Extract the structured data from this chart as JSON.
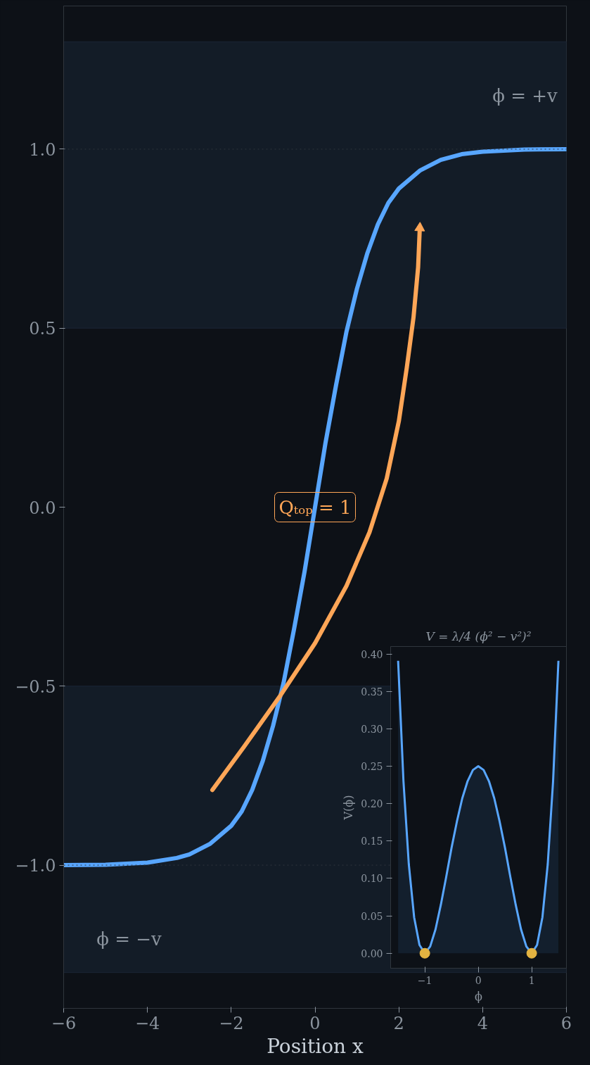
{
  "chart_data": [
    {
      "type": "line",
      "xlabel": "Position x",
      "series": [
        {
          "color": "#58a6ff",
          "x": [
            -6,
            -5,
            -4,
            -3.3,
            -3,
            -2.5,
            -2,
            -1.75,
            -1.5,
            -1.25,
            -1,
            -0.75,
            -0.5,
            -0.25,
            0,
            0.25,
            0.5,
            0.75,
            1,
            1.25,
            1.5,
            1.75,
            2,
            2.5,
            3,
            3.5,
            4,
            5,
            6
          ],
          "values": [
            -1.0,
            -0.999,
            -0.993,
            -0.98,
            -0.97,
            -0.94,
            -0.89,
            -0.85,
            -0.79,
            -0.71,
            -0.61,
            -0.49,
            -0.34,
            -0.18,
            0.0,
            0.18,
            0.34,
            0.49,
            0.61,
            0.71,
            0.79,
            0.85,
            0.89,
            0.94,
            0.97,
            0.986,
            0.993,
            0.999,
            1.0
          ]
        },
        {
          "color": "#ffa657",
          "x": [
            -2.45,
            -1.7,
            -0.85,
            0.0,
            0.75,
            1.3,
            1.71,
            2.0,
            2.19,
            2.35,
            2.46,
            2.5
          ],
          "values": [
            -0.79,
            -0.67,
            -0.53,
            -0.38,
            -0.22,
            -0.07,
            0.08,
            0.24,
            0.39,
            0.53,
            0.67,
            0.78
          ]
        }
      ],
      "xlim": [
        -6,
        6
      ],
      "ylim": [
        -1.4,
        1.4
      ],
      "xticks": [
        {
          "value": -6,
          "label": "−6"
        },
        {
          "value": -4,
          "label": "−4"
        },
        {
          "value": -2,
          "label": "−2"
        },
        0,
        2,
        4,
        6
      ],
      "yticks": [
        {
          "value": -1,
          "label": "−1.0"
        },
        {
          "value": -0.5,
          "label": "−0.5"
        },
        {
          "value": 0,
          "label": "0.0"
        },
        {
          "value": 0.5,
          "label": "0.5"
        },
        {
          "value": 1,
          "label": "1.0"
        }
      ],
      "grid": false,
      "ref_lines": [
        {
          "axis": "y",
          "value": 1,
          "color": "#30363d",
          "line_style": "dotted"
        },
        {
          "axis": "y",
          "value": -1,
          "color": "#30363d",
          "line_style": "dotted"
        }
      ],
      "bands": [
        {
          "axis": "y",
          "from": 0.5,
          "to": 1.3,
          "color": "#131c27"
        },
        {
          "axis": "y",
          "from": -1.3,
          "to": -0.5,
          "color": "#131c27"
        }
      ],
      "annotations": [
        "ϕ = +v",
        "ϕ = −v",
        {
          "text": "Qₜₒₚ = 1",
          "x": 0,
          "y": 0
        }
      ]
    },
    {
      "type": "area",
      "title": "V = λ/4 (ϕ² − v²)²",
      "xlabel": "ϕ",
      "ylabel": "V(ϕ)",
      "series": [
        {
          "color": "#58a6ff",
          "x": [
            -1.5,
            -1.4,
            -1.3,
            -1.2,
            -1.1,
            -1.0,
            -0.9,
            -0.8,
            -0.7,
            -0.6,
            -0.5,
            -0.4,
            -0.3,
            -0.2,
            -0.1,
            0,
            0.1,
            0.2,
            0.3,
            0.4,
            0.5,
            0.6,
            0.7,
            0.8,
            0.9,
            1.0,
            1.1,
            1.2,
            1.3,
            1.4,
            1.5
          ],
          "values": [
            0.391,
            0.23,
            0.119,
            0.048,
            0.011,
            0.0,
            0.009,
            0.032,
            0.065,
            0.102,
            0.141,
            0.176,
            0.207,
            0.23,
            0.245,
            0.25,
            0.245,
            0.23,
            0.207,
            0.176,
            0.141,
            0.102,
            0.065,
            0.032,
            0.009,
            0.0,
            0.011,
            0.048,
            0.119,
            0.23,
            0.391
          ]
        },
        {
          "type": "scatter",
          "color": "#e3b341",
          "marker": "circle",
          "x": [
            -1,
            1
          ],
          "values": [
            0,
            0
          ]
        }
      ],
      "xlim": [
        -1.64,
        1.65
      ],
      "ylim": [
        -0.02,
        0.41
      ],
      "xticks": [
        {
          "value": -1,
          "label": "−1"
        },
        0,
        1
      ],
      "yticks": [
        {
          "value": 0,
          "label": "0.00"
        },
        {
          "value": 0.05,
          "label": "0.05"
        },
        {
          "value": 0.1,
          "label": "0.10"
        },
        {
          "value": 0.15,
          "label": "0.15"
        },
        {
          "value": 0.2,
          "label": "0.20"
        },
        {
          "value": 0.25,
          "label": "0.25"
        },
        {
          "value": 0.3,
          "label": "0.30"
        },
        {
          "value": 0.35,
          "label": "0.35"
        },
        {
          "value": 0.4,
          "label": "0.40"
        }
      ],
      "grid": false
    }
  ]
}
